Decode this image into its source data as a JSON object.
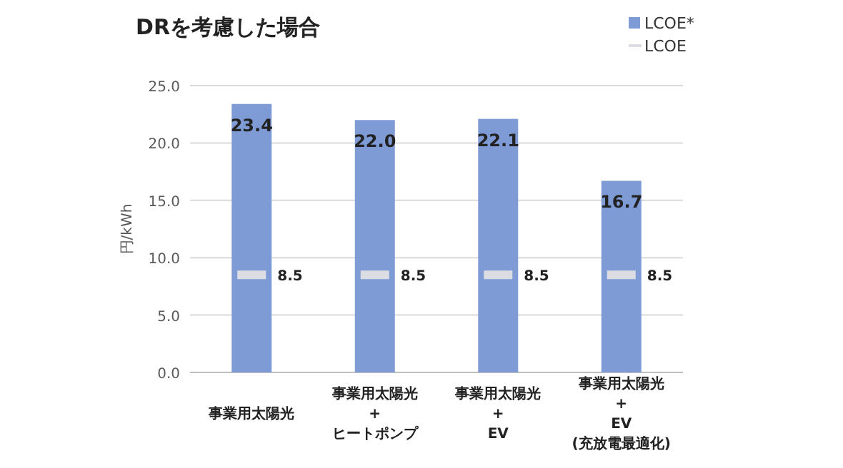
{
  "chart_data": {
    "type": "bar",
    "title": "DRを考慮した場合",
    "ylabel": "円/kWh",
    "categories": [
      "事業用太陽光",
      "事業用太陽光\n+\nヒートポンプ",
      "事業用太陽光\n+\nEV",
      "事業用太陽光\n+\nEV\n(充放電最適化)"
    ],
    "series": [
      {
        "name": "LCOE*",
        "color": "#7f9bd6",
        "values": [
          23.4,
          22.0,
          22.1,
          16.7
        ],
        "value_labels": [
          "23.4",
          "22.0",
          "22.1",
          "16.7"
        ]
      },
      {
        "name": "LCOE",
        "type": "scatter",
        "color": "#dcdde2",
        "values": [
          8.5,
          8.5,
          8.5,
          8.5
        ],
        "value_labels": [
          "8.5",
          "8.5",
          "8.5",
          "8.5"
        ]
      }
    ],
    "ylim": [
      0,
      25
    ],
    "yticks": [
      {
        "value": 0,
        "label": "0.0"
      },
      {
        "value": 5,
        "label": "5.0"
      },
      {
        "value": 10,
        "label": "10.0"
      },
      {
        "value": 15,
        "label": "15.0"
      },
      {
        "value": 20,
        "label": "20.0"
      },
      {
        "value": 25,
        "label": "25.0"
      }
    ],
    "grid": "y",
    "legend": "top right"
  }
}
